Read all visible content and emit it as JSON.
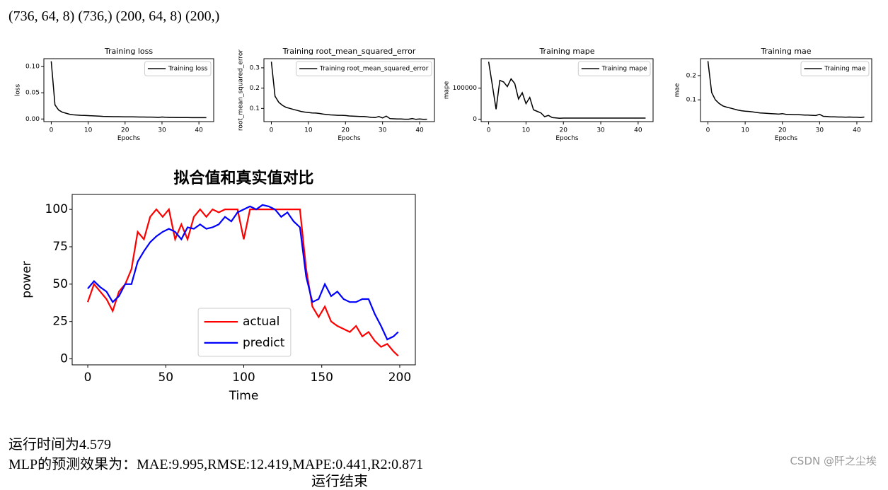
{
  "output_lines": [
    "(736, 64, 8) (736,) (200, 64, 8) (200,)"
  ],
  "chart_data": [
    {
      "type": "line",
      "title": "Training loss",
      "xlabel": "Epochs",
      "ylabel": "loss",
      "legend": "upper right",
      "x": [
        0,
        1,
        2,
        3,
        4,
        5,
        6,
        7,
        8,
        9,
        10,
        11,
        12,
        13,
        14,
        15,
        16,
        17,
        18,
        19,
        20,
        21,
        22,
        23,
        24,
        25,
        26,
        27,
        28,
        29,
        30,
        31,
        32,
        33,
        34,
        35,
        36,
        37,
        38,
        39,
        40,
        41,
        42
      ],
      "series": [
        {
          "name": "Training loss",
          "color": "#000000",
          "values": [
            0.11,
            0.027,
            0.017,
            0.013,
            0.011,
            0.009,
            0.008,
            0.0075,
            0.007,
            0.0068,
            0.0065,
            0.006,
            0.0058,
            0.0055,
            0.005,
            0.0048,
            0.0046,
            0.0045,
            0.0044,
            0.0043,
            0.0042,
            0.004,
            0.004,
            0.0039,
            0.0038,
            0.0037,
            0.0036,
            0.0036,
            0.0035,
            0.003,
            0.0038,
            0.0032,
            0.003,
            0.0029,
            0.0028,
            0.0028,
            0.0027,
            0.0027,
            0.0026,
            0.0026,
            0.0026,
            0.0025,
            0.0025
          ]
        }
      ],
      "xlim": [
        -2,
        44
      ],
      "xticks": [
        0,
        10,
        20,
        30,
        40
      ],
      "ylim": [
        -0.005,
        0.115
      ],
      "yticks": [
        {
          "value": 0,
          "label": "0.00"
        },
        0.05,
        {
          "value": 0.1,
          "label": "0.10"
        }
      ]
    },
    {
      "type": "line",
      "title": "Training root_mean_squared_error",
      "xlabel": "Epochs",
      "ylabel": "root_mean_squared_error",
      "legend": "upper right",
      "x": [
        0,
        1,
        2,
        3,
        4,
        5,
        6,
        7,
        8,
        9,
        10,
        11,
        12,
        13,
        14,
        15,
        16,
        17,
        18,
        19,
        20,
        21,
        22,
        23,
        24,
        25,
        26,
        27,
        28,
        29,
        30,
        31,
        32,
        33,
        34,
        35,
        36,
        37,
        38,
        39,
        40,
        41,
        42
      ],
      "series": [
        {
          "name": "Training root_mean_squared_error",
          "color": "#000000",
          "values": [
            0.33,
            0.16,
            0.13,
            0.115,
            0.105,
            0.1,
            0.095,
            0.09,
            0.085,
            0.082,
            0.08,
            0.078,
            0.077,
            0.075,
            0.072,
            0.07,
            0.068,
            0.067,
            0.066,
            0.066,
            0.065,
            0.063,
            0.062,
            0.061,
            0.06,
            0.06,
            0.058,
            0.056,
            0.055,
            0.06,
            0.053,
            0.062,
            0.05,
            0.049,
            0.048,
            0.048,
            0.047,
            0.047,
            0.05,
            0.046,
            0.048,
            0.046,
            0.047
          ]
        }
      ],
      "xlim": [
        -2,
        44
      ],
      "xticks": [
        0,
        10,
        20,
        30,
        40
      ],
      "ylim": [
        0.035,
        0.345
      ],
      "yticks": [
        0.1,
        0.2,
        0.3
      ]
    },
    {
      "type": "line",
      "title": "Training mape",
      "xlabel": "Epochs",
      "ylabel": "mape",
      "legend": "upper right",
      "x": [
        0,
        1,
        2,
        3,
        4,
        5,
        6,
        7,
        8,
        9,
        10,
        11,
        12,
        13,
        14,
        15,
        16,
        17,
        18,
        19,
        20,
        21,
        22,
        23,
        24,
        25,
        26,
        27,
        28,
        29,
        30,
        31,
        32,
        33,
        34,
        35,
        36,
        37,
        38,
        39,
        40,
        41,
        42
      ],
      "series": [
        {
          "name": "Training mape",
          "color": "#000000",
          "values": [
            185000,
            110000,
            32000,
            125000,
            120000,
            105000,
            130000,
            115000,
            65000,
            85000,
            50000,
            70000,
            30000,
            25000,
            20000,
            8000,
            12000,
            5000,
            4000,
            3000,
            3500,
            3500,
            3500,
            3500,
            3500,
            3500,
            3500,
            3500,
            3500,
            3500,
            3500,
            3500,
            3500,
            3500,
            3500,
            3500,
            3500,
            3500,
            3500,
            3500,
            3500,
            3500,
            3500
          ]
        }
      ],
      "xlim": [
        -2,
        44
      ],
      "xticks": [
        0,
        10,
        20,
        30,
        40
      ],
      "ylim": [
        -8000,
        195000
      ],
      "yticks": [
        0,
        100000
      ]
    },
    {
      "type": "line",
      "title": "Training mae",
      "xlabel": "Epochs",
      "ylabel": "mae",
      "legend": "upper right",
      "x": [
        0,
        1,
        2,
        3,
        4,
        5,
        6,
        7,
        8,
        9,
        10,
        11,
        12,
        13,
        14,
        15,
        16,
        17,
        18,
        19,
        20,
        21,
        22,
        23,
        24,
        25,
        26,
        27,
        28,
        29,
        30,
        31,
        32,
        33,
        34,
        35,
        36,
        37,
        38,
        39,
        40,
        41,
        42
      ],
      "series": [
        {
          "name": "Training mae",
          "color": "#000000",
          "values": [
            0.26,
            0.13,
            0.1,
            0.085,
            0.075,
            0.07,
            0.066,
            0.062,
            0.058,
            0.055,
            0.053,
            0.052,
            0.05,
            0.048,
            0.046,
            0.045,
            0.044,
            0.043,
            0.042,
            0.041,
            0.043,
            0.04,
            0.04,
            0.039,
            0.039,
            0.038,
            0.037,
            0.037,
            0.036,
            0.035,
            0.04,
            0.032,
            0.031,
            0.03,
            0.03,
            0.029,
            0.029,
            0.028,
            0.029,
            0.028,
            0.028,
            0.027,
            0.029
          ]
        }
      ],
      "xlim": [
        -2,
        44
      ],
      "xticks": [
        0,
        10,
        20,
        30,
        40
      ],
      "ylim": [
        0.01,
        0.27
      ],
      "yticks": [
        0.1,
        0.2
      ]
    },
    {
      "type": "line",
      "title": "拟合值和真实值对比",
      "xlabel": "Time",
      "ylabel": "power",
      "legend": "lower center",
      "x": [
        0,
        4,
        8,
        12,
        16,
        20,
        24,
        28,
        32,
        36,
        40,
        44,
        48,
        52,
        56,
        60,
        64,
        68,
        72,
        76,
        80,
        84,
        88,
        92,
        96,
        100,
        104,
        108,
        112,
        116,
        120,
        124,
        128,
        132,
        136,
        140,
        144,
        148,
        152,
        156,
        160,
        164,
        168,
        172,
        176,
        180,
        184,
        188,
        192,
        196,
        199
      ],
      "series": [
        {
          "name": "actual",
          "color": "#ff0000",
          "values": [
            38,
            50,
            45,
            40,
            32,
            45,
            50,
            60,
            85,
            80,
            95,
            100,
            95,
            100,
            80,
            90,
            80,
            95,
            100,
            95,
            100,
            98,
            100,
            100,
            100,
            80,
            100,
            100,
            100,
            100,
            100,
            100,
            100,
            100,
            100,
            60,
            35,
            28,
            35,
            25,
            22,
            20,
            18,
            22,
            15,
            18,
            12,
            8,
            10,
            5,
            2
          ]
        },
        {
          "name": "predict",
          "color": "#0000ff",
          "values": [
            47,
            52,
            48,
            45,
            38,
            42,
            50,
            50,
            65,
            72,
            78,
            82,
            85,
            87,
            85,
            80,
            88,
            87,
            90,
            87,
            88,
            90,
            95,
            92,
            98,
            100,
            102,
            100,
            103,
            102,
            100,
            95,
            98,
            92,
            88,
            55,
            38,
            40,
            50,
            42,
            45,
            40,
            38,
            38,
            40,
            40,
            30,
            22,
            13,
            15,
            18
          ]
        }
      ],
      "xlim": [
        -10,
        210
      ],
      "xticks": [
        0,
        50,
        100,
        150,
        200
      ],
      "ylim": [
        -4,
        110
      ],
      "yticks": [
        0,
        25,
        50,
        75,
        100
      ]
    }
  ],
  "footer_lines": [
    "运行时间为4.579",
    "MLP的预测效果为：MAE:9.995,RMSE:12.419,MAPE:0.441,R2:0.871",
    "运行结束"
  ],
  "watermark": "CSDN @阡之尘埃"
}
